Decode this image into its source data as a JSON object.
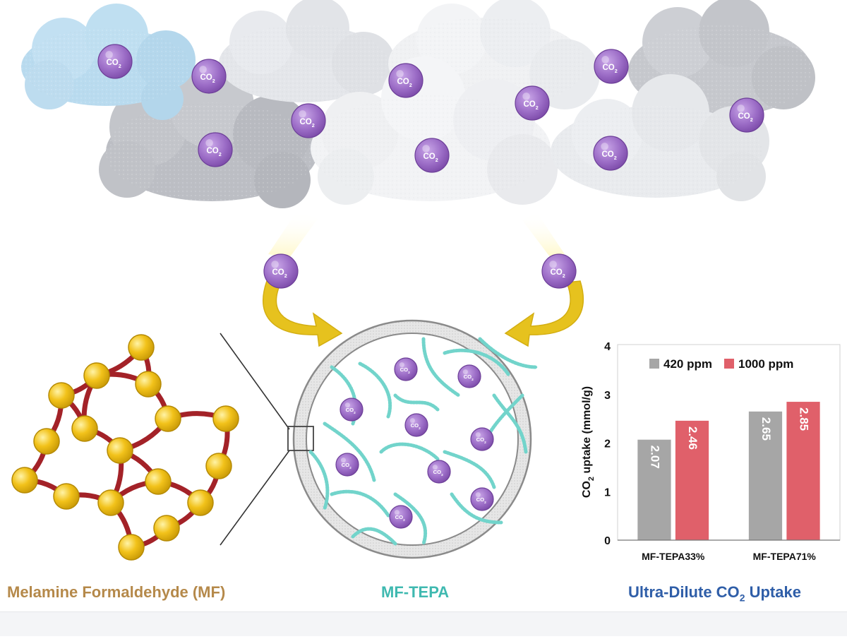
{
  "captions": {
    "mf": "Melamine Formaldehyde (MF)",
    "tepa": "MF-TEPA",
    "uptake_prefix": "Ultra-Dilute CO",
    "uptake_sub": "2",
    "uptake_suffix": " Uptake"
  },
  "colors": {
    "mf_caption": "#b5894a",
    "tepa_caption": "#3fb9b0",
    "uptake_caption": "#2f5ea8",
    "co2_bubble": "#9b6cc6",
    "bead": "#f2c21a",
    "linker": "#a32228",
    "polymer": "#72d4cb",
    "arrow": "#e6c21e",
    "bar_420": "#a6a6a6",
    "bar_1000": "#e0606a"
  },
  "molecule_label": {
    "main": "CO",
    "sub": "2"
  },
  "chart_data": {
    "type": "bar",
    "categories": [
      "MF-TEPA33%",
      "MF-TEPA71%"
    ],
    "series": [
      {
        "name": "420 ppm",
        "values": [
          2.07,
          2.65
        ],
        "color": "#a6a6a6"
      },
      {
        "name": "1000 ppm",
        "values": [
          2.46,
          2.85
        ],
        "color": "#e0606a"
      }
    ],
    "value_labels": [
      [
        "2.07",
        "2.65"
      ],
      [
        "2.46",
        "2.85"
      ]
    ],
    "ylabel_main": "CO",
    "ylabel_sub": "2",
    "ylabel_rest": " uptake (mmol/g)",
    "ylim": [
      0,
      4
    ],
    "yticks": [
      "0",
      "1",
      "2",
      "3",
      "4"
    ],
    "legend_position": "top",
    "grid": false
  }
}
